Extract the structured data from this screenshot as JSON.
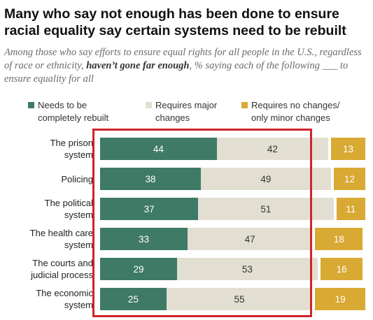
{
  "header": {
    "title": "Many who say not enough has been done to ensure racial equality say certain systems need to be rebuilt",
    "subtitle_before": "Among those who say efforts to ensure equal rights for all people in the U.S., regardless of race or ethnicity, ",
    "subtitle_emphasis": "haven’t gone far enough",
    "subtitle_after": ", % saying each of the following ___ to ensure equality for all"
  },
  "colors": {
    "rebuilt": "#3e7a66",
    "major": "#e2dfd2",
    "minor": "#d8a933",
    "highlight": "#d0242b"
  },
  "chart_data": {
    "type": "bar",
    "orientation": "horizontal",
    "stacked": true,
    "categories": [
      "The prison\nsystem",
      "Policing",
      "The political\nsystem",
      "The health care\nsystem",
      "The courts and\njudicial process",
      "The economic\nsystem"
    ],
    "series": [
      {
        "name": "Needs to be\ncompletely rebuilt",
        "values": [
          44,
          38,
          37,
          33,
          29,
          25
        ]
      },
      {
        "name": "Requires major\nchanges",
        "values": [
          42,
          49,
          51,
          47,
          53,
          55
        ]
      },
      {
        "name": "Requires no changes/\nonly minor changes",
        "values": [
          13,
          12,
          11,
          18,
          16,
          19
        ]
      }
    ],
    "legend_position": "top",
    "grid": false
  }
}
